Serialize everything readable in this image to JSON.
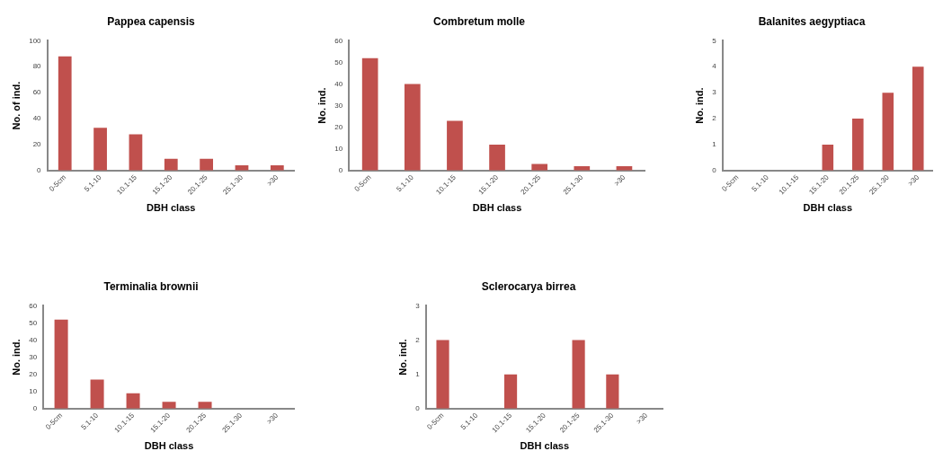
{
  "chart_data": [
    {
      "type": "bar",
      "title": "Pappea capensis",
      "xlabel": "DBH class",
      "ylabel": "No. of ind.",
      "categories": [
        "0-5cm",
        "5.1-10",
        "10.1-15",
        "15.1-20",
        "20.1-25",
        "25.1-30",
        ">30"
      ],
      "values": [
        88,
        33,
        28,
        9,
        9,
        4,
        4
      ],
      "color": "#c0504d",
      "ylim": [
        0,
        100
      ],
      "yticks": [
        0,
        20,
        40,
        60,
        80,
        100
      ],
      "grid": false,
      "legend": false
    },
    {
      "type": "bar",
      "title": "Combretum molle",
      "xlabel": "DBH class",
      "ylabel": "No. ind.",
      "categories": [
        "0-5cm",
        "5.1-10",
        "10.1-15",
        "15.1-20",
        "20.1-25",
        "25.1-30",
        ">30"
      ],
      "values": [
        52,
        40,
        23,
        12,
        3,
        2,
        2
      ],
      "color": "#c0504d",
      "ylim": [
        0,
        60
      ],
      "yticks": [
        0,
        10,
        20,
        30,
        40,
        50,
        60
      ],
      "grid": false,
      "legend": false
    },
    {
      "type": "bar",
      "title": "Balanites aegyptiaca",
      "xlabel": "DBH class",
      "ylabel": "No. ind.",
      "categories": [
        "0-5cm",
        "5.1-10",
        "10.1-15",
        "15.1-20",
        "20.1-25",
        "25.1-30",
        ">30"
      ],
      "values": [
        0,
        0,
        0,
        1,
        2,
        3,
        4
      ],
      "color": "#c0504d",
      "ylim": [
        0,
        5
      ],
      "yticks": [
        0,
        1,
        2,
        3,
        4,
        5
      ],
      "grid": false,
      "legend": false
    },
    {
      "type": "bar",
      "title": "Terminalia brownii",
      "xlabel": "DBH class",
      "ylabel": "No. ind.",
      "categories": [
        "0-5cm",
        "5.1-10",
        "10.1-15",
        "15.1-20",
        "20.1-25",
        "25.1-30",
        ">30"
      ],
      "values": [
        52,
        17,
        9,
        4,
        4,
        0,
        0
      ],
      "color": "#c0504d",
      "ylim": [
        0,
        60
      ],
      "yticks": [
        0,
        10,
        20,
        30,
        40,
        50,
        60
      ],
      "grid": false,
      "legend": false
    },
    {
      "type": "bar",
      "title": "Sclerocarya birrea",
      "xlabel": "DBH class",
      "ylabel": "No. ind.",
      "categories": [
        "0-5cm",
        "5.1-10",
        "10.1-15",
        "15.1-20",
        "20.1-25",
        "25.1-30",
        ">30"
      ],
      "values": [
        2,
        0,
        1,
        0,
        2,
        1,
        0
      ],
      "color": "#c0504d",
      "ylim": [
        0,
        3
      ],
      "yticks": [
        0,
        1,
        2,
        3
      ],
      "grid": false,
      "legend": false
    }
  ]
}
